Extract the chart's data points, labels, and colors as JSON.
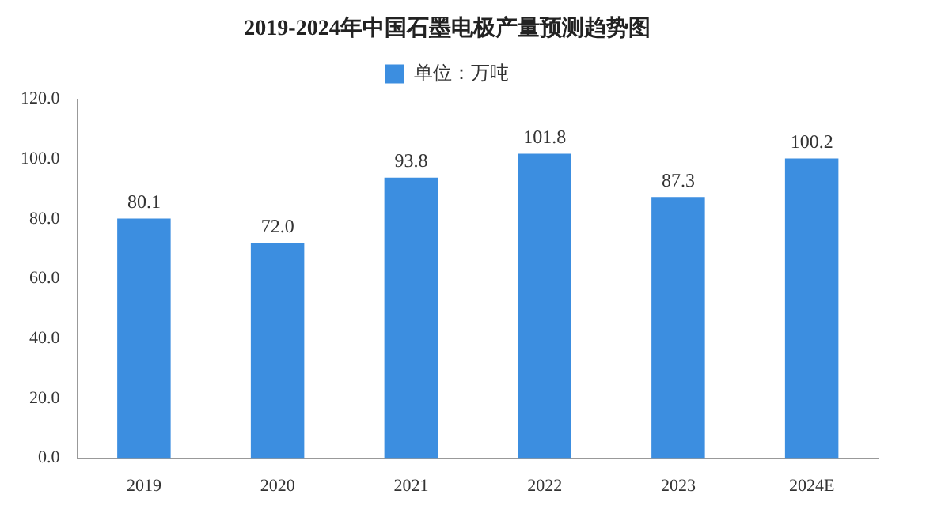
{
  "chart_data": {
    "type": "bar",
    "title": "2019-2024年中国石墨电极产量预测趋势图",
    "categories": [
      "2019",
      "2020",
      "2021",
      "2022",
      "2023",
      "2024E"
    ],
    "series": [
      {
        "name": "单位：万吨",
        "color": "#3c8ee0",
        "values": [
          80.1,
          72.0,
          93.8,
          101.8,
          87.3,
          100.2
        ]
      }
    ],
    "value_labels": [
      "80.1",
      "72.0",
      "93.8",
      "101.8",
      "87.3",
      "100.2"
    ],
    "ylim": [
      0,
      120
    ],
    "yticks": [
      {
        "value": 0,
        "label": "0.0"
      },
      {
        "value": 20,
        "label": "20.0"
      },
      {
        "value": 40,
        "label": "40.0"
      },
      {
        "value": 60,
        "label": "60.0"
      },
      {
        "value": 80,
        "label": "80.0"
      },
      {
        "value": 100,
        "label": "100.0"
      },
      {
        "value": 120,
        "label": "120.0"
      }
    ],
    "grid": false,
    "legend": "top"
  }
}
